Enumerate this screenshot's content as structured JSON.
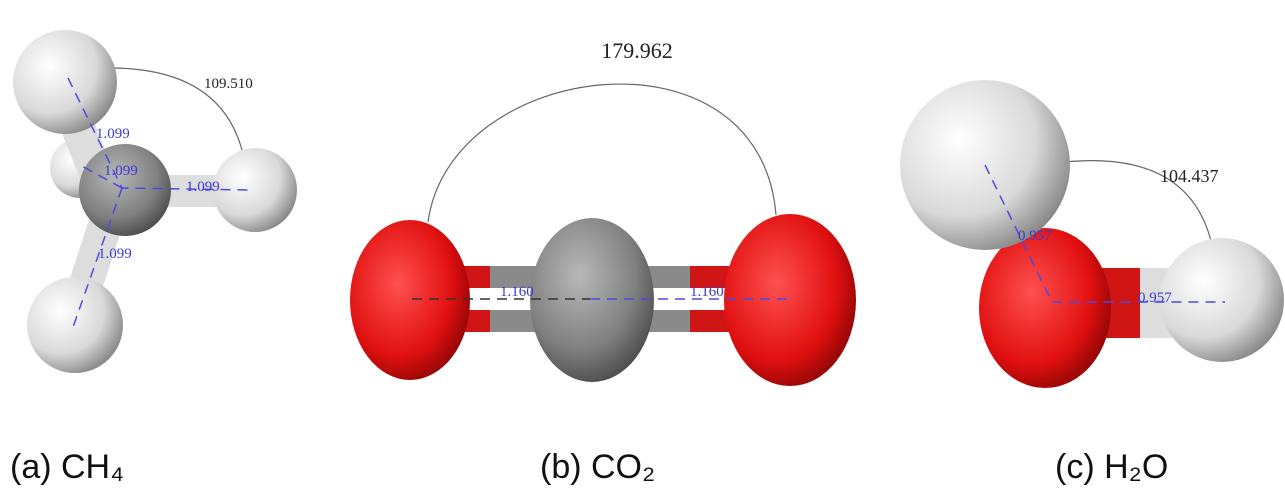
{
  "panels": [
    {
      "caption": "(a) CH₄",
      "angle": "109.510",
      "bonds": [
        "1.099",
        "1.099",
        "1.099",
        "1.099"
      ]
    },
    {
      "caption": "(b) CO₂",
      "angle": "179.962",
      "bonds": [
        "1.160",
        "1.160"
      ]
    },
    {
      "caption": "(c) H₂O",
      "angle": "104.437",
      "bonds": [
        "0.957",
        "0.957"
      ]
    }
  ]
}
